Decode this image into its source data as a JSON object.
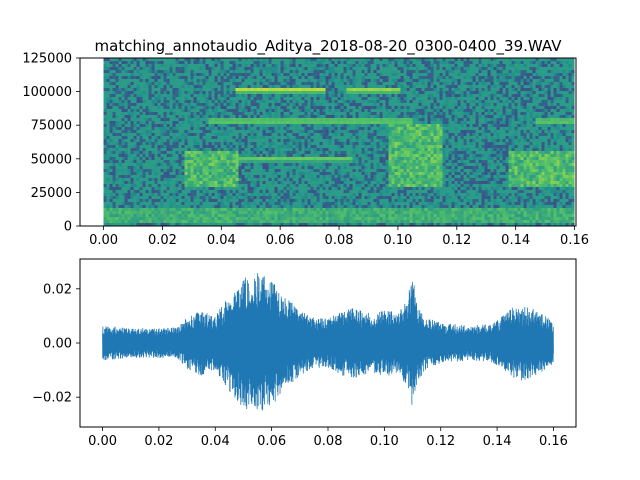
{
  "chart_data": [
    {
      "type": "heatmap",
      "title": "matching_annotaudio_Aditya_2018-08-20_0300-0400_39.WAV",
      "xlabel": "",
      "ylabel": "",
      "xlim": [
        -0.008,
        0.1605
      ],
      "ylim": [
        0,
        125000
      ],
      "x_ticks": [
        0.0,
        0.02,
        0.04,
        0.06,
        0.08,
        0.1,
        0.12,
        0.14,
        0.16
      ],
      "x_tick_labels": [
        "0.00",
        "0.02",
        "0.04",
        "0.06",
        "0.08",
        "0.10",
        "0.12",
        "0.14",
        "0.16"
      ],
      "y_ticks": [
        0,
        25000,
        50000,
        75000,
        100000,
        125000
      ],
      "y_tick_labels": [
        "0",
        "25000",
        "50000",
        "75000",
        "100000",
        "125000"
      ],
      "time_range": [
        0.0,
        0.16
      ],
      "frequency_range": [
        0,
        125000
      ],
      "colormap": "viridis",
      "grid": false,
      "background_color": "#2b9c8a",
      "features": [
        {
          "kind": "tone",
          "t_start": 0.045,
          "t_end": 0.075,
          "freq": 101000,
          "intensity": 0.95
        },
        {
          "kind": "tone",
          "t_start": 0.083,
          "t_end": 0.101,
          "freq": 101000,
          "intensity": 0.8
        },
        {
          "kind": "tone",
          "t_start": 0.036,
          "t_end": 0.105,
          "freq": 78000,
          "intensity": 0.6
        },
        {
          "kind": "tone",
          "t_start": 0.147,
          "t_end": 0.16,
          "freq": 78000,
          "intensity": 0.55
        },
        {
          "kind": "tone",
          "t_start": 0.045,
          "t_end": 0.085,
          "freq": 50000,
          "intensity": 0.45
        },
        {
          "kind": "broadband",
          "t_start": 0.028,
          "t_end": 0.046,
          "f_low": 28000,
          "f_high": 55000,
          "intensity": 0.55
        },
        {
          "kind": "broadband",
          "t_start": 0.097,
          "t_end": 0.115,
          "f_low": 28000,
          "f_high": 75000,
          "intensity": 0.55
        },
        {
          "kind": "broadband",
          "t_start": 0.138,
          "t_end": 0.16,
          "f_low": 30000,
          "f_high": 55000,
          "intensity": 0.55
        },
        {
          "kind": "broadband",
          "t_start": 0.0,
          "t_end": 0.16,
          "f_low": 3000,
          "f_high": 14000,
          "intensity": 0.35
        }
      ]
    },
    {
      "type": "line",
      "title": "",
      "xlabel": "",
      "ylabel": "",
      "xlim": [
        -0.008,
        0.168
      ],
      "ylim": [
        -0.031,
        0.031
      ],
      "x_ticks": [
        0.0,
        0.02,
        0.04,
        0.06,
        0.08,
        0.1,
        0.12,
        0.14,
        0.16
      ],
      "x_tick_labels": [
        "0.00",
        "0.02",
        "0.04",
        "0.06",
        "0.08",
        "0.10",
        "0.12",
        "0.14",
        "0.16"
      ],
      "y_ticks": [
        0.02,
        0.0,
        -0.02
      ],
      "y_tick_labels": [
        "0.02",
        "0.00",
        "−0.02"
      ],
      "grid": false,
      "line_color": "#1f77b4",
      "envelope": {
        "t": [
          0.0,
          0.01,
          0.02,
          0.027,
          0.03,
          0.035,
          0.04,
          0.045,
          0.05,
          0.055,
          0.06,
          0.065,
          0.07,
          0.075,
          0.08,
          0.085,
          0.09,
          0.095,
          0.1,
          0.105,
          0.108,
          0.11,
          0.112,
          0.115,
          0.12,
          0.13,
          0.138,
          0.142,
          0.145,
          0.15,
          0.155,
          0.16
        ],
        "amp": [
          0.0065,
          0.0055,
          0.0055,
          0.006,
          0.0095,
          0.012,
          0.01,
          0.018,
          0.024,
          0.026,
          0.024,
          0.017,
          0.012,
          0.0095,
          0.009,
          0.012,
          0.013,
          0.011,
          0.0125,
          0.011,
          0.016,
          0.025,
          0.014,
          0.0095,
          0.0075,
          0.0065,
          0.007,
          0.01,
          0.013,
          0.014,
          0.0115,
          0.008
        ]
      }
    }
  ]
}
